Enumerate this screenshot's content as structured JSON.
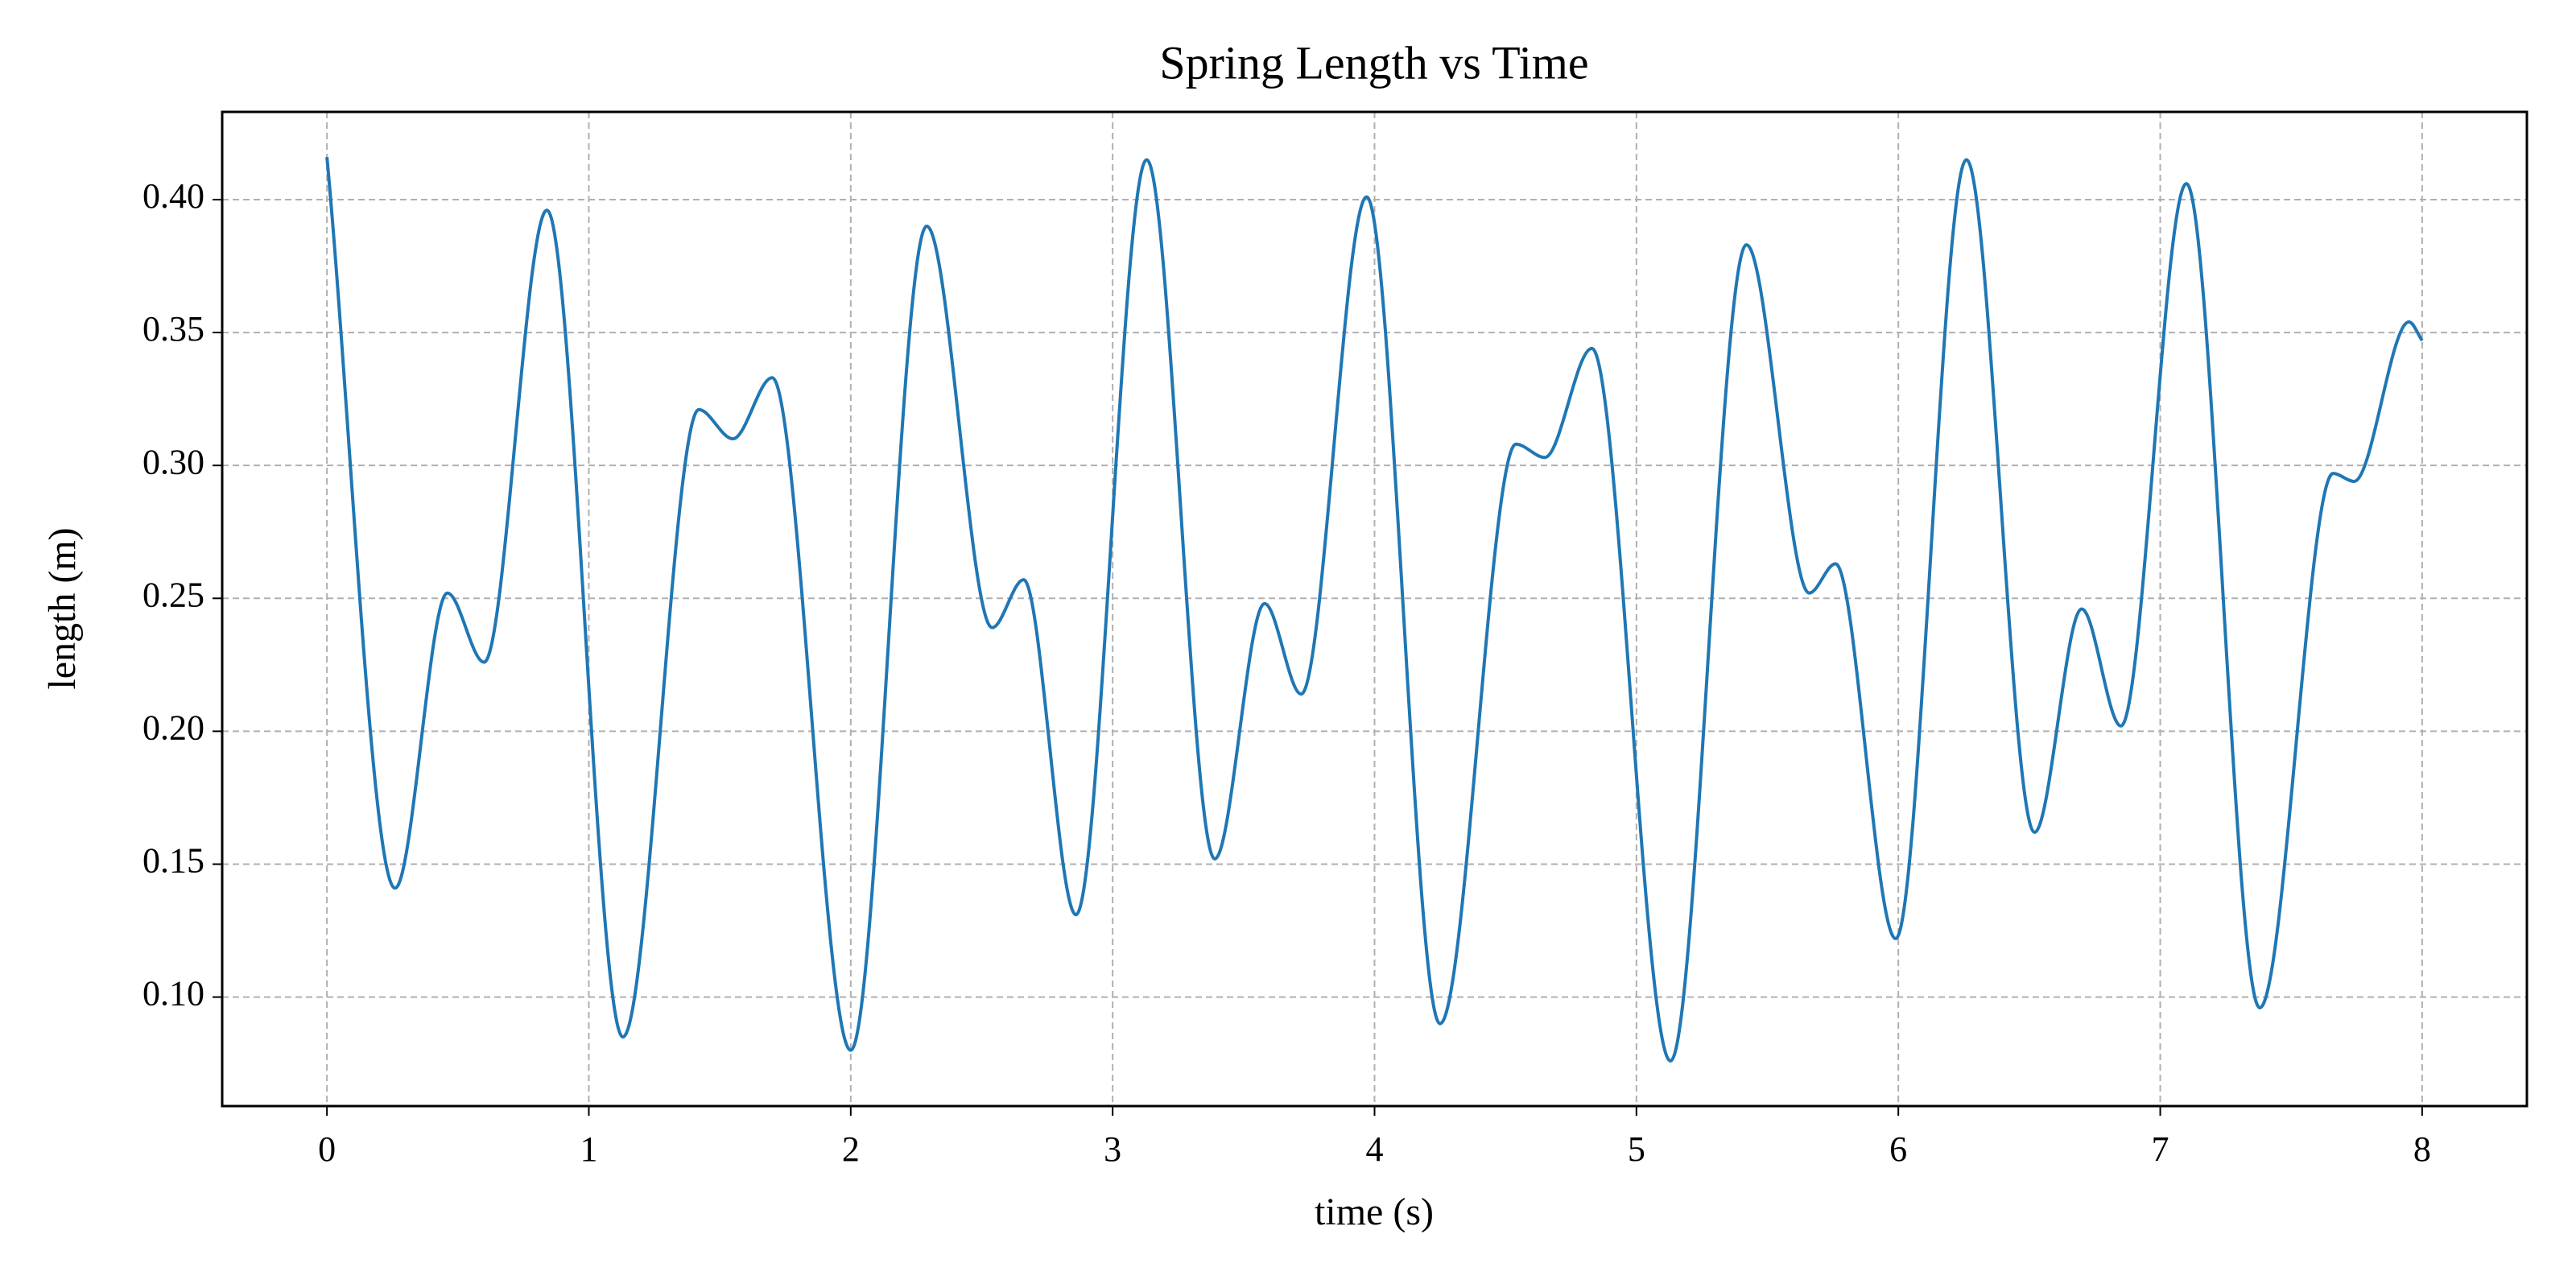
{
  "chart_data": {
    "type": "line",
    "title": "Spring Length vs Time",
    "x_label": "time (s)",
    "y_label": "length (m)",
    "x": [
      0,
      0.26,
      0.46,
      0.6,
      0.84,
      1.13,
      1.42,
      1.55,
      1.7,
      2.0,
      2.29,
      2.54,
      2.66,
      2.86,
      3.13,
      3.39,
      3.58,
      3.72,
      3.97,
      4.25,
      4.54,
      4.65,
      4.83,
      5.13,
      5.42,
      5.66,
      5.76,
      5.99,
      6.26,
      6.52,
      6.7,
      6.85,
      7.1,
      7.38,
      7.66,
      7.74,
      7.95,
      8.0
    ],
    "series": [
      {
        "name": "length",
        "color": "#1f77b4",
        "values": [
          0.416,
          0.141,
          0.252,
          0.226,
          0.396,
          0.085,
          0.321,
          0.31,
          0.333,
          0.08,
          0.39,
          0.239,
          0.257,
          0.131,
          0.415,
          0.152,
          0.248,
          0.214,
          0.401,
          0.09,
          0.308,
          0.303,
          0.344,
          0.076,
          0.383,
          0.252,
          0.263,
          0.122,
          0.415,
          0.162,
          0.246,
          0.202,
          0.406,
          0.096,
          0.297,
          0.294,
          0.354,
          0.347
        ]
      }
    ],
    "xlim": [
      -0.4,
      8.4
    ],
    "ylim": [
      0.059,
      0.433
    ],
    "xticks": [
      0,
      1,
      2,
      3,
      4,
      5,
      6,
      7,
      8
    ],
    "yticks": [
      {
        "value": 0.1,
        "label": "0.10"
      },
      0.15,
      {
        "value": 0.2,
        "label": "0.20"
      },
      0.25,
      {
        "value": 0.3,
        "label": "0.30"
      },
      0.35,
      {
        "value": 0.4,
        "label": "0.40"
      }
    ],
    "grid": true
  }
}
